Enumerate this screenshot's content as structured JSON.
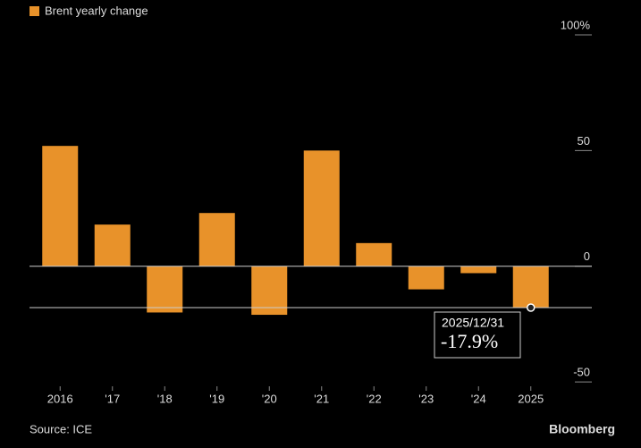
{
  "chart_data": {
    "type": "bar",
    "series": [
      {
        "name": "Brent yearly change",
        "color": "#e8922a",
        "values": [
          52,
          18,
          -20,
          23,
          -21,
          50,
          10,
          -10,
          -3,
          -17.9
        ]
      }
    ],
    "categories": [
      "2016",
      "'17",
      "'18",
      "'19",
      "'20",
      "'21",
      "'22",
      "'23",
      "'24",
      "2025"
    ],
    "ylim": [
      -55,
      100
    ],
    "yticks": [
      {
        "value": 100,
        "label": "100%"
      },
      50,
      0,
      -50
    ],
    "tooltip": {
      "x": "2025/12/31",
      "label": "-17.9%"
    },
    "source": "Source: ICE",
    "brand": "Bloomberg"
  }
}
